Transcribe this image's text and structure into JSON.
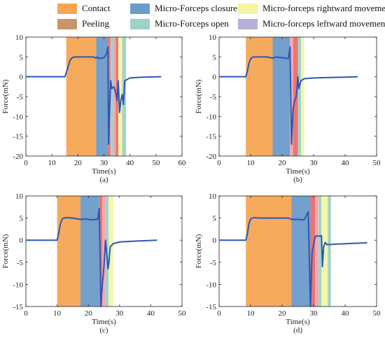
{
  "legend": [
    {
      "label": "Contact",
      "color": "#f6a553"
    },
    {
      "label": "Peeling",
      "color": "#c8956a"
    },
    {
      "label": "Micro-Forceps closure",
      "color": "#6b9bc9"
    },
    {
      "label": "Micro-Forceps open",
      "color": "#9ed1c8"
    },
    {
      "label": "Micro-forceps rightward movement",
      "color": "#f3f5a3"
    },
    {
      "label": "Micro-forceps leftward movement",
      "color": "#b7afd8"
    }
  ],
  "phase_colors": {
    "contact": "#f6a553",
    "peeling": "#c8956a",
    "closure": "#6b9bc9",
    "open": "#9ed1c8",
    "right": "#f3f5a3",
    "left": "#b7afd8",
    "pink": "#f4a3b0",
    "red": "#ea6f66"
  },
  "line_color": "#2f56b5",
  "chart_data": [
    {
      "type": "line",
      "caption": "(a)",
      "xlabel": "Time(s)",
      "ylabel": "Force(mN)",
      "xlim": [
        0,
        60
      ],
      "ylim": [
        -20,
        10
      ],
      "xticks": [
        0,
        10,
        20,
        30,
        40,
        50,
        60
      ],
      "yticks": [
        -20,
        -15,
        -10,
        -5,
        0,
        5,
        10
      ],
      "phases": [
        {
          "type": "contact",
          "x0": 15.5,
          "x1": 27.0
        },
        {
          "type": "closure",
          "x0": 27.0,
          "x1": 31.5
        },
        {
          "type": "red",
          "x0": 31.5,
          "x1": 32.5
        },
        {
          "type": "open",
          "x0": 32.5,
          "x1": 33.5
        },
        {
          "type": "pink",
          "x0": 33.5,
          "x1": 34.5
        },
        {
          "type": "red",
          "x0": 34.5,
          "x1": 35.5
        },
        {
          "type": "right",
          "x0": 35.5,
          "x1": 37.0
        },
        {
          "type": "open",
          "x0": 37.0,
          "x1": 38.5
        }
      ],
      "x": [
        0,
        15,
        16,
        17,
        18,
        19,
        20,
        22,
        24,
        26,
        27,
        27.5,
        28,
        30,
        31,
        31.5,
        31.8,
        32,
        32.3,
        32.6,
        33,
        33.8,
        34.5,
        35,
        35.5,
        36,
        36.5,
        37,
        37.5,
        38,
        40,
        45,
        52
      ],
      "y": [
        0,
        0,
        2,
        4.2,
        4.9,
        5,
        5,
        5,
        5,
        5,
        4.7,
        5,
        4.6,
        4.8,
        5.8,
        7.5,
        -17,
        -12,
        -6,
        -1,
        -3,
        -2.5,
        -4,
        -6,
        -1,
        -9,
        -6,
        -4.5,
        -7,
        -1,
        -0.3,
        -0.1,
        0
      ]
    },
    {
      "type": "line",
      "caption": "(b)",
      "xlabel": "Time(s)",
      "ylabel": "Force(mN)",
      "xlim": [
        0,
        50
      ],
      "ylim": [
        -20,
        10
      ],
      "xticks": [
        0,
        10,
        20,
        30,
        40,
        50
      ],
      "yticks": [
        -20,
        -15,
        -10,
        -5,
        0,
        5,
        10
      ],
      "phases": [
        {
          "type": "contact",
          "x0": 8.5,
          "x1": 17.0
        },
        {
          "type": "closure",
          "x0": 17.0,
          "x1": 22.5
        },
        {
          "type": "pink",
          "x0": 22.5,
          "x1": 23.5
        },
        {
          "type": "red",
          "x0": 23.5,
          "x1": 25.0
        },
        {
          "type": "open",
          "x0": 25.0,
          "x1": 26.0
        },
        {
          "type": "right",
          "x0": 26.0,
          "x1": 27.0
        }
      ],
      "x": [
        0,
        8.5,
        9,
        9.5,
        10,
        10.5,
        11,
        13,
        15,
        17,
        18,
        20,
        22,
        22.5,
        23,
        23.5,
        24,
        24.5,
        25,
        25.3,
        25.6,
        26,
        27,
        30,
        35,
        40,
        44
      ],
      "y": [
        0,
        0,
        1.5,
        3.5,
        4.5,
        4.9,
        5,
        5,
        5,
        4.7,
        5,
        4.8,
        4.6,
        7.5,
        -17,
        -8,
        -6,
        -5,
        0,
        -3,
        -2,
        -1,
        -0.5,
        -0.3,
        -0.2,
        -0.1,
        0
      ]
    },
    {
      "type": "line",
      "caption": "(c)",
      "xlabel": "Time(s)",
      "ylabel": "Force(mN)",
      "xlim": [
        0,
        50
      ],
      "ylim": [
        -15,
        10
      ],
      "xticks": [
        0,
        10,
        20,
        30,
        40,
        50
      ],
      "yticks": [
        -15,
        -10,
        -5,
        0,
        5,
        10
      ],
      "phases": [
        {
          "type": "contact",
          "x0": 10.0,
          "x1": 17.5
        },
        {
          "type": "closure",
          "x0": 17.5,
          "x1": 23.5
        },
        {
          "type": "red",
          "x0": 23.5,
          "x1": 24.5
        },
        {
          "type": "pink",
          "x0": 24.5,
          "x1": 25.5
        },
        {
          "type": "open",
          "x0": 25.5,
          "x1": 26.5
        },
        {
          "type": "right",
          "x0": 26.5,
          "x1": 28.0
        }
      ],
      "x": [
        0,
        10,
        10.5,
        11,
        11.5,
        12,
        13,
        15,
        17.5,
        19,
        21,
        23,
        23.5,
        24,
        24.5,
        25,
        25.5,
        26,
        26.3,
        26.6,
        27,
        28,
        30,
        35,
        42
      ],
      "y": [
        0,
        0,
        1.5,
        3.5,
        4.6,
        5,
        5.1,
        5,
        4.7,
        4.8,
        4.6,
        4.7,
        7.2,
        -15,
        -10,
        -6,
        0,
        -4,
        -6.5,
        -5,
        -1.5,
        -0.8,
        -0.4,
        -0.2,
        0
      ]
    },
    {
      "type": "line",
      "caption": "(d)",
      "xlabel": "Time(s)",
      "ylabel": "Force(mN)",
      "xlim": [
        0,
        50
      ],
      "ylim": [
        -15,
        10
      ],
      "xticks": [
        0,
        10,
        20,
        30,
        40,
        50
      ],
      "yticks": [
        -15,
        -10,
        -5,
        0,
        5,
        10
      ],
      "phases": [
        {
          "type": "contact",
          "x0": 8.5,
          "x1": 23.0
        },
        {
          "type": "closure",
          "x0": 23.0,
          "x1": 29.0
        },
        {
          "type": "red",
          "x0": 29.0,
          "x1": 30.5
        },
        {
          "type": "pink",
          "x0": 30.5,
          "x1": 31.5
        },
        {
          "type": "open",
          "x0": 31.5,
          "x1": 32.5
        },
        {
          "type": "right",
          "x0": 32.5,
          "x1": 34.5
        },
        {
          "type": "open",
          "x0": 34.5,
          "x1": 35.5
        }
      ],
      "x": [
        0,
        8.5,
        9,
        9.5,
        10,
        11,
        13,
        16,
        19,
        22,
        23,
        25,
        27,
        28.3,
        29,
        29.5,
        30,
        30.5,
        31,
        31.5,
        32.5,
        32.8,
        33.2,
        33.7,
        34.2,
        35,
        37,
        40,
        43,
        47
      ],
      "y": [
        0,
        0,
        1.5,
        3.8,
        4.8,
        5.1,
        5,
        5,
        5,
        5,
        4.7,
        4.7,
        4.6,
        6.4,
        -15,
        -3,
        -1,
        0.8,
        1,
        0.9,
        1,
        -6,
        -1.5,
        -0.5,
        -1,
        -1,
        -0.9,
        -0.8,
        -0.7,
        -0.6
      ]
    }
  ]
}
